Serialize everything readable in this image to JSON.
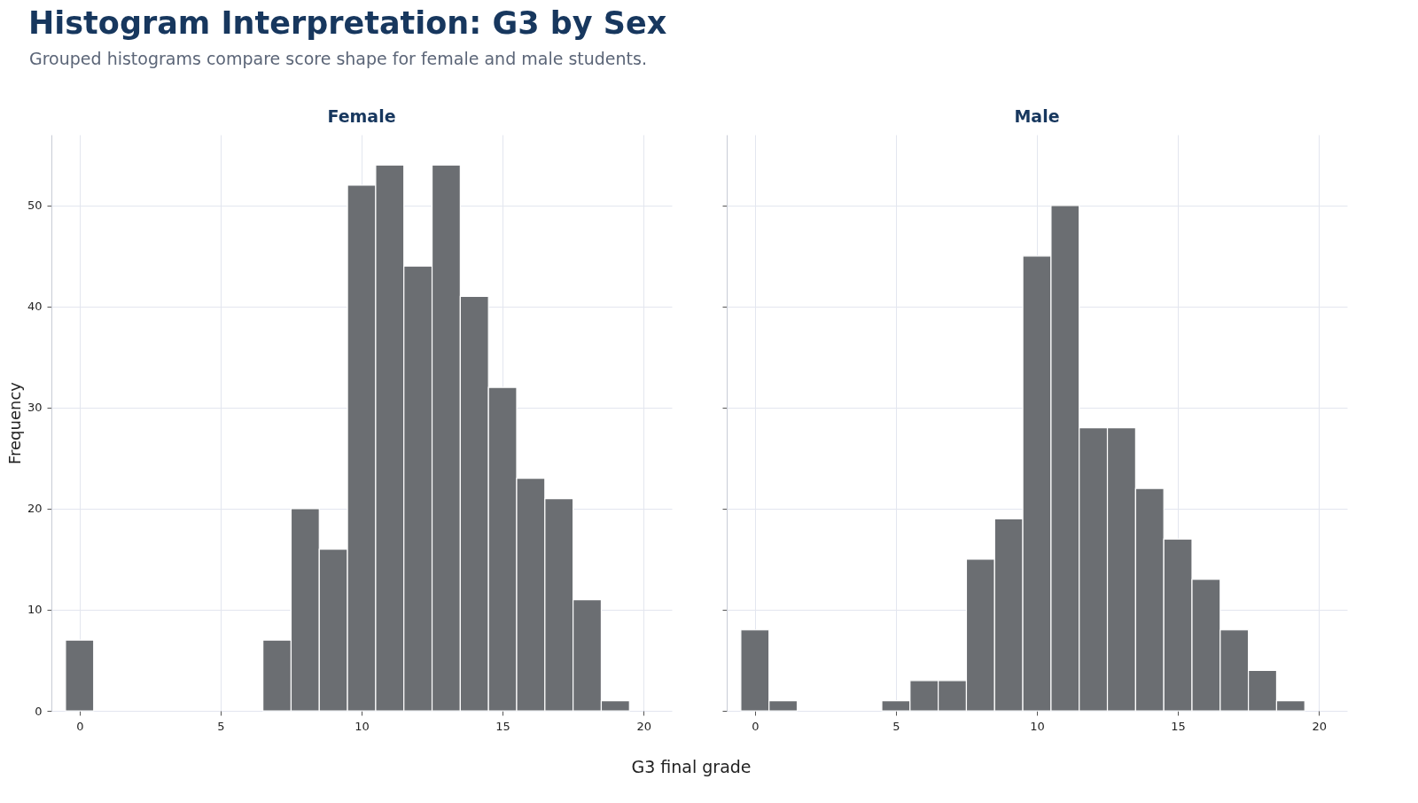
{
  "chart_data": [
    {
      "type": "histogram",
      "title": "Female",
      "annotations": [
        "Histogram Interpretation: G3 by Sex",
        "Grouped histograms compare score shape for female and male students."
      ],
      "xlabel": "G3 final grade",
      "ylabel": "Frequency",
      "color": "#6b6e72",
      "bins": [
        -0.5,
        0.5,
        1.5,
        2.5,
        3.5,
        4.5,
        5.5,
        6.5,
        7.5,
        8.5,
        9.5,
        10.5,
        11.5,
        12.5,
        13.5,
        14.5,
        15.5,
        16.5,
        17.5,
        18.5,
        19.5
      ],
      "values": [
        7,
        0,
        0,
        0,
        0,
        0,
        0,
        7,
        20,
        16,
        52,
        54,
        44,
        54,
        41,
        32,
        23,
        21,
        11,
        1
      ],
      "xlim": [
        -1,
        21
      ],
      "xticks": [
        0,
        5,
        10,
        15,
        20
      ],
      "ylim": [
        0,
        57
      ],
      "yticks": [
        0,
        10,
        20,
        30,
        40,
        50
      ],
      "grid": true
    },
    {
      "type": "histogram",
      "title": "Male",
      "color": "#6b6e72",
      "bins": [
        -0.5,
        0.5,
        1.5,
        2.5,
        3.5,
        4.5,
        5.5,
        6.5,
        7.5,
        8.5,
        9.5,
        10.5,
        11.5,
        12.5,
        13.5,
        14.5,
        15.5,
        16.5,
        17.5,
        18.5,
        19.5
      ],
      "values": [
        8,
        1,
        0,
        0,
        0,
        1,
        3,
        3,
        15,
        19,
        45,
        50,
        28,
        28,
        22,
        17,
        13,
        8,
        4,
        1
      ],
      "xlim": [
        -1,
        21
      ],
      "xticks": [
        0,
        5,
        10,
        15,
        20
      ],
      "ylim": [
        0,
        57
      ],
      "yticks": [
        0,
        10,
        20,
        30,
        40,
        50
      ],
      "grid": true,
      "tick_labels": "x"
    }
  ]
}
